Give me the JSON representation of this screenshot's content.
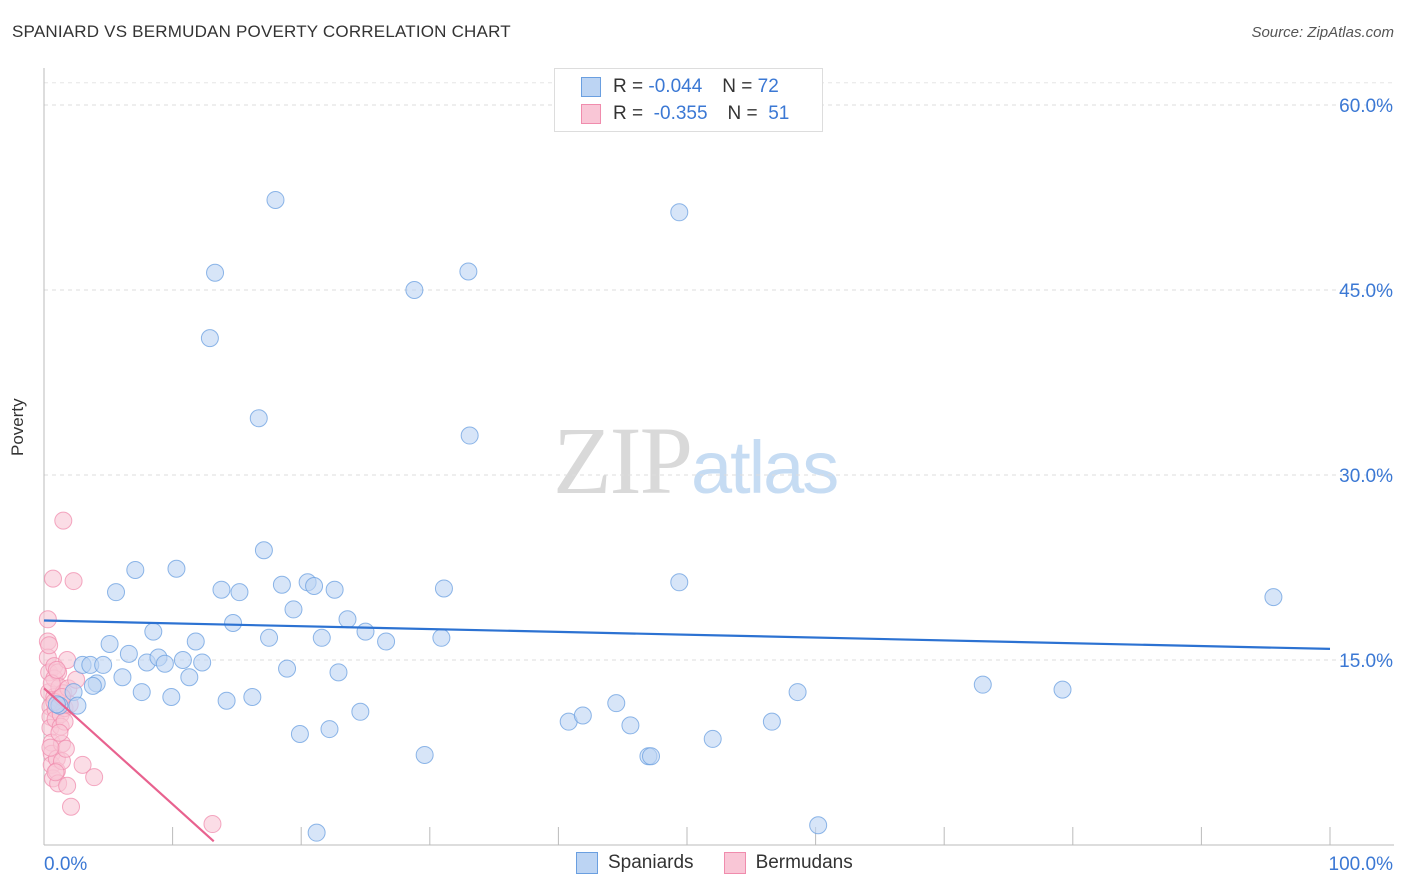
{
  "header": {
    "title": "SPANIARD VS BERMUDAN POVERTY CORRELATION CHART",
    "source": "Source: ZipAtlas.com"
  },
  "watermark": {
    "zip": "ZIP",
    "atlas": "atlas"
  },
  "legend": {
    "rows": [
      {
        "r_label": "R =",
        "r_value": "-0.044",
        "n_label": "N =",
        "n_value": "72"
      },
      {
        "r_label": "R =",
        "r_value": "-0.355",
        "n_label": "N =",
        "n_value": "51"
      }
    ]
  },
  "bottom_legend": {
    "spaniards": "Spaniards",
    "bermudans": "Bermudans"
  },
  "chart_data": {
    "type": "scatter",
    "title": "SPANIARD VS BERMUDAN POVERTY CORRELATION CHART",
    "xlabel": "",
    "ylabel": "Poverty",
    "xlim": [
      0,
      100
    ],
    "ylim": [
      0,
      63
    ],
    "x_tick_labels": [
      "0.0%",
      "100.0%"
    ],
    "y_ticks": [
      15,
      30,
      45,
      60
    ],
    "y_tick_labels": [
      "15.0%",
      "30.0%",
      "45.0%",
      "60.0%"
    ],
    "grid": true,
    "colors": {
      "spaniards": "#6a9fe0",
      "bermudans": "#f08cad",
      "spaniards_line": "#2c72d2",
      "bermudans_line": "#e8628f",
      "tick_text": "#3b78d4"
    },
    "series": [
      {
        "name": "Spaniards",
        "r": -0.044,
        "n": 72,
        "trend": [
          [
            0,
            18.2
          ],
          [
            100,
            15.9
          ]
        ],
        "points": [
          [
            1.2,
            11.3
          ],
          [
            2.3,
            12.4
          ],
          [
            2.6,
            11.3
          ],
          [
            3.0,
            14.6
          ],
          [
            3.6,
            14.6
          ],
          [
            4.1,
            13.1
          ],
          [
            4.6,
            14.6
          ],
          [
            5.1,
            16.3
          ],
          [
            5.6,
            20.5
          ],
          [
            6.1,
            13.6
          ],
          [
            6.6,
            15.5
          ],
          [
            7.1,
            22.3
          ],
          [
            7.6,
            12.4
          ],
          [
            8.0,
            14.8
          ],
          [
            8.5,
            17.3
          ],
          [
            8.9,
            15.2
          ],
          [
            9.4,
            14.7
          ],
          [
            9.9,
            12.0
          ],
          [
            10.3,
            22.4
          ],
          [
            10.8,
            15.0
          ],
          [
            11.3,
            13.6
          ],
          [
            11.8,
            16.5
          ],
          [
            12.3,
            14.8
          ],
          [
            12.9,
            41.1
          ],
          [
            13.3,
            46.4
          ],
          [
            13.8,
            20.7
          ],
          [
            14.2,
            11.7
          ],
          [
            14.7,
            18.0
          ],
          [
            15.2,
            20.5
          ],
          [
            16.2,
            12.0
          ],
          [
            16.7,
            34.6
          ],
          [
            17.1,
            23.9
          ],
          [
            17.5,
            16.8
          ],
          [
            18.0,
            52.3
          ],
          [
            18.5,
            21.1
          ],
          [
            18.9,
            14.3
          ],
          [
            19.4,
            19.1
          ],
          [
            19.9,
            9.0
          ],
          [
            20.5,
            21.3
          ],
          [
            21.2,
            1.0
          ],
          [
            21.6,
            16.8
          ],
          [
            22.2,
            9.4
          ],
          [
            22.6,
            20.7
          ],
          [
            22.9,
            14.0
          ],
          [
            23.6,
            18.3
          ],
          [
            25.0,
            17.3
          ],
          [
            24.6,
            10.8
          ],
          [
            26.6,
            16.5
          ],
          [
            28.8,
            45.0
          ],
          [
            29.6,
            7.3
          ],
          [
            30.9,
            16.8
          ],
          [
            31.1,
            20.8
          ],
          [
            33.0,
            46.5
          ],
          [
            33.1,
            33.2
          ],
          [
            40.8,
            10.0
          ],
          [
            41.9,
            10.5
          ],
          [
            44.5,
            11.5
          ],
          [
            45.6,
            9.7
          ],
          [
            47.0,
            7.2
          ],
          [
            47.2,
            7.2
          ],
          [
            49.4,
            51.3
          ],
          [
            49.4,
            21.3
          ],
          [
            52.0,
            8.6
          ],
          [
            56.6,
            10.0
          ],
          [
            58.6,
            12.4
          ],
          [
            60.2,
            1.6
          ],
          [
            73.0,
            13.0
          ],
          [
            79.2,
            12.6
          ],
          [
            95.6,
            20.1
          ],
          [
            1.0,
            11.4
          ],
          [
            3.8,
            12.9
          ],
          [
            21.0,
            21.0
          ]
        ]
      },
      {
        "name": "Bermudans",
        "r": -0.355,
        "n": 51,
        "trend": [
          [
            0,
            12.7
          ],
          [
            13.2,
            0.3
          ]
        ],
        "points": [
          [
            0.3,
            18.3
          ],
          [
            0.3,
            16.5
          ],
          [
            0.3,
            15.2
          ],
          [
            0.4,
            14.0
          ],
          [
            0.4,
            12.4
          ],
          [
            0.5,
            11.2
          ],
          [
            0.5,
            10.4
          ],
          [
            0.5,
            9.5
          ],
          [
            0.6,
            8.3
          ],
          [
            0.6,
            7.4
          ],
          [
            0.6,
            6.5
          ],
          [
            0.7,
            5.4
          ],
          [
            0.7,
            21.6
          ],
          [
            0.8,
            14.5
          ],
          [
            0.8,
            13.5
          ],
          [
            0.8,
            12.0
          ],
          [
            0.9,
            11.0
          ],
          [
            0.9,
            10.2
          ],
          [
            1.0,
            7.0
          ],
          [
            1.0,
            6.0
          ],
          [
            1.1,
            5.0
          ],
          [
            1.1,
            14.0
          ],
          [
            1.2,
            12.8
          ],
          [
            1.2,
            11.8
          ],
          [
            1.3,
            10.6
          ],
          [
            1.3,
            9.6
          ],
          [
            1.4,
            8.2
          ],
          [
            1.4,
            6.8
          ],
          [
            1.5,
            26.3
          ],
          [
            1.5,
            12.3
          ],
          [
            1.6,
            11.1
          ],
          [
            1.6,
            10.0
          ],
          [
            1.7,
            7.8
          ],
          [
            1.8,
            4.8
          ],
          [
            1.8,
            15.0
          ],
          [
            1.9,
            12.7
          ],
          [
            2.0,
            11.4
          ],
          [
            2.1,
            3.1
          ],
          [
            2.3,
            21.4
          ],
          [
            2.5,
            13.4
          ],
          [
            3.0,
            6.5
          ],
          [
            3.9,
            5.5
          ],
          [
            13.1,
            1.7
          ],
          [
            0.4,
            16.2
          ],
          [
            0.6,
            13.1
          ],
          [
            0.8,
            11.6
          ],
          [
            1.0,
            14.2
          ],
          [
            1.2,
            9.1
          ],
          [
            0.5,
            7.9
          ],
          [
            0.9,
            5.9
          ],
          [
            1.4,
            12.0
          ]
        ]
      }
    ]
  }
}
